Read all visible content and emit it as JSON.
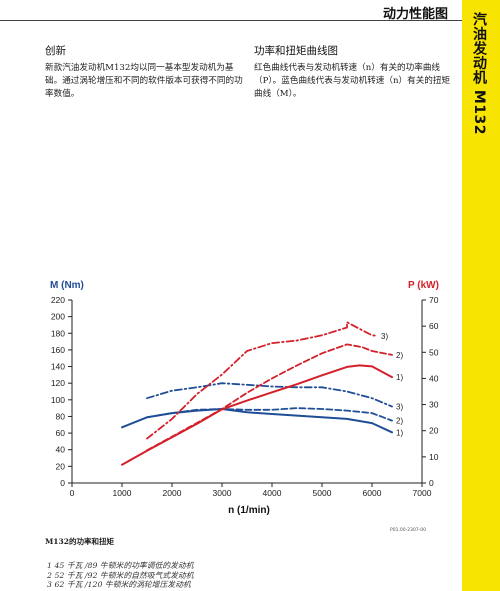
{
  "header": {
    "title": "动力性能图"
  },
  "side_tab": {
    "title": "汽油发动机 M132"
  },
  "left_column": {
    "heading": "创新",
    "body": "新款汽油发动机M132均以同一基本型发动机为基础。通过涡轮增压和不同的软件版本可获得不同的功率数值。"
  },
  "right_column": {
    "heading": "功率和扭矩曲线图",
    "body": "红色曲线代表与发动机转速（n）有关的功率曲线（P）。蓝色曲线代表与发动机转速（n）有关的扭矩曲线（M）。"
  },
  "chart_data": {
    "type": "line",
    "left_axis_title": "M (Nm)",
    "right_axis_title": "P (kW)",
    "x_axis_title": "n (1/min)",
    "x_range": [
      0,
      7000
    ],
    "x_ticks": [
      0,
      1000,
      2000,
      3000,
      4000,
      5000,
      6000,
      7000
    ],
    "left_range": [
      0,
      220
    ],
    "left_ticks": [
      0,
      20,
      40,
      60,
      80,
      100,
      120,
      140,
      160,
      180,
      200,
      220
    ],
    "right_range": [
      0,
      70
    ],
    "right_ticks": [
      0,
      10,
      20,
      30,
      40,
      50,
      60,
      70
    ],
    "grid": false,
    "colors": {
      "torque": "#1f4e96",
      "power": "#d4202a",
      "left_axis_title": "#1f4e96",
      "right_axis_title": "#d4202a"
    },
    "series": [
      {
        "group": "torque",
        "label": "1)",
        "dash": "solid",
        "points": [
          [
            1000,
            67
          ],
          [
            1500,
            79
          ],
          [
            2000,
            84
          ],
          [
            2500,
            87
          ],
          [
            3000,
            89
          ],
          [
            3500,
            85
          ],
          [
            4000,
            83
          ],
          [
            5000,
            79
          ],
          [
            5500,
            77
          ],
          [
            6000,
            72
          ],
          [
            6400,
            61
          ]
        ]
      },
      {
        "group": "torque",
        "label": "2)",
        "dash": "dashed",
        "points": [
          [
            1500,
            79
          ],
          [
            2000,
            84
          ],
          [
            2500,
            88
          ],
          [
            3000,
            89
          ],
          [
            3500,
            88
          ],
          [
            4000,
            88
          ],
          [
            4500,
            90
          ],
          [
            5000,
            89
          ],
          [
            5500,
            87
          ],
          [
            6000,
            84
          ],
          [
            6400,
            75
          ]
        ]
      },
      {
        "group": "torque",
        "label": "3)",
        "dash": "dashdot",
        "points": [
          [
            1500,
            102
          ],
          [
            2000,
            111
          ],
          [
            2500,
            115
          ],
          [
            3000,
            120
          ],
          [
            3500,
            118
          ],
          [
            4000,
            116
          ],
          [
            4500,
            115
          ],
          [
            5000,
            115
          ],
          [
            5500,
            110
          ],
          [
            6000,
            102
          ],
          [
            6400,
            92
          ]
        ]
      },
      {
        "group": "power",
        "label": "1)",
        "dash": "solid",
        "points": [
          [
            1000,
            7
          ],
          [
            1500,
            12.3
          ],
          [
            2000,
            17.5
          ],
          [
            2500,
            22.7
          ],
          [
            3000,
            28.2
          ],
          [
            3500,
            31.5
          ],
          [
            4000,
            34.7
          ],
          [
            4500,
            37.8
          ],
          [
            5000,
            41.2
          ],
          [
            5500,
            44.4
          ],
          [
            5750,
            45
          ],
          [
            6000,
            44.6
          ],
          [
            6400,
            40.5
          ]
        ]
      },
      {
        "group": "power",
        "label": "2)",
        "dash": "dashed",
        "points": [
          [
            1500,
            12.5
          ],
          [
            2000,
            17.7
          ],
          [
            2500,
            23
          ],
          [
            3000,
            28.3
          ],
          [
            3500,
            34.5
          ],
          [
            4000,
            40
          ],
          [
            4500,
            45
          ],
          [
            5000,
            49.6
          ],
          [
            5500,
            53
          ],
          [
            5800,
            52
          ],
          [
            6000,
            50.5
          ],
          [
            6400,
            49
          ]
        ]
      },
      {
        "group": "power",
        "label": "3)",
        "dash": "dashdot",
        "points": [
          [
            1500,
            17
          ],
          [
            2000,
            24.5
          ],
          [
            2500,
            34
          ],
          [
            3000,
            41.5
          ],
          [
            3500,
            50.5
          ],
          [
            4000,
            53.5
          ],
          [
            4500,
            54.5
          ],
          [
            5000,
            56.5
          ],
          [
            5500,
            59.5
          ],
          [
            5500,
            61.5
          ],
          [
            5750,
            59
          ],
          [
            6000,
            56.5
          ],
          [
            6100,
            56.3
          ]
        ]
      }
    ]
  },
  "doc_code": "P01.00-2307-00",
  "caption": "M132的功率和扭矩",
  "legend": [
    "1  45 千瓦 /89 牛顿米的功率调低的发动机",
    "2  52 千瓦 /92 牛顿米的自然吸气式发动机",
    "3  62 千瓦 /120 牛顿米的涡轮增压发动机"
  ]
}
